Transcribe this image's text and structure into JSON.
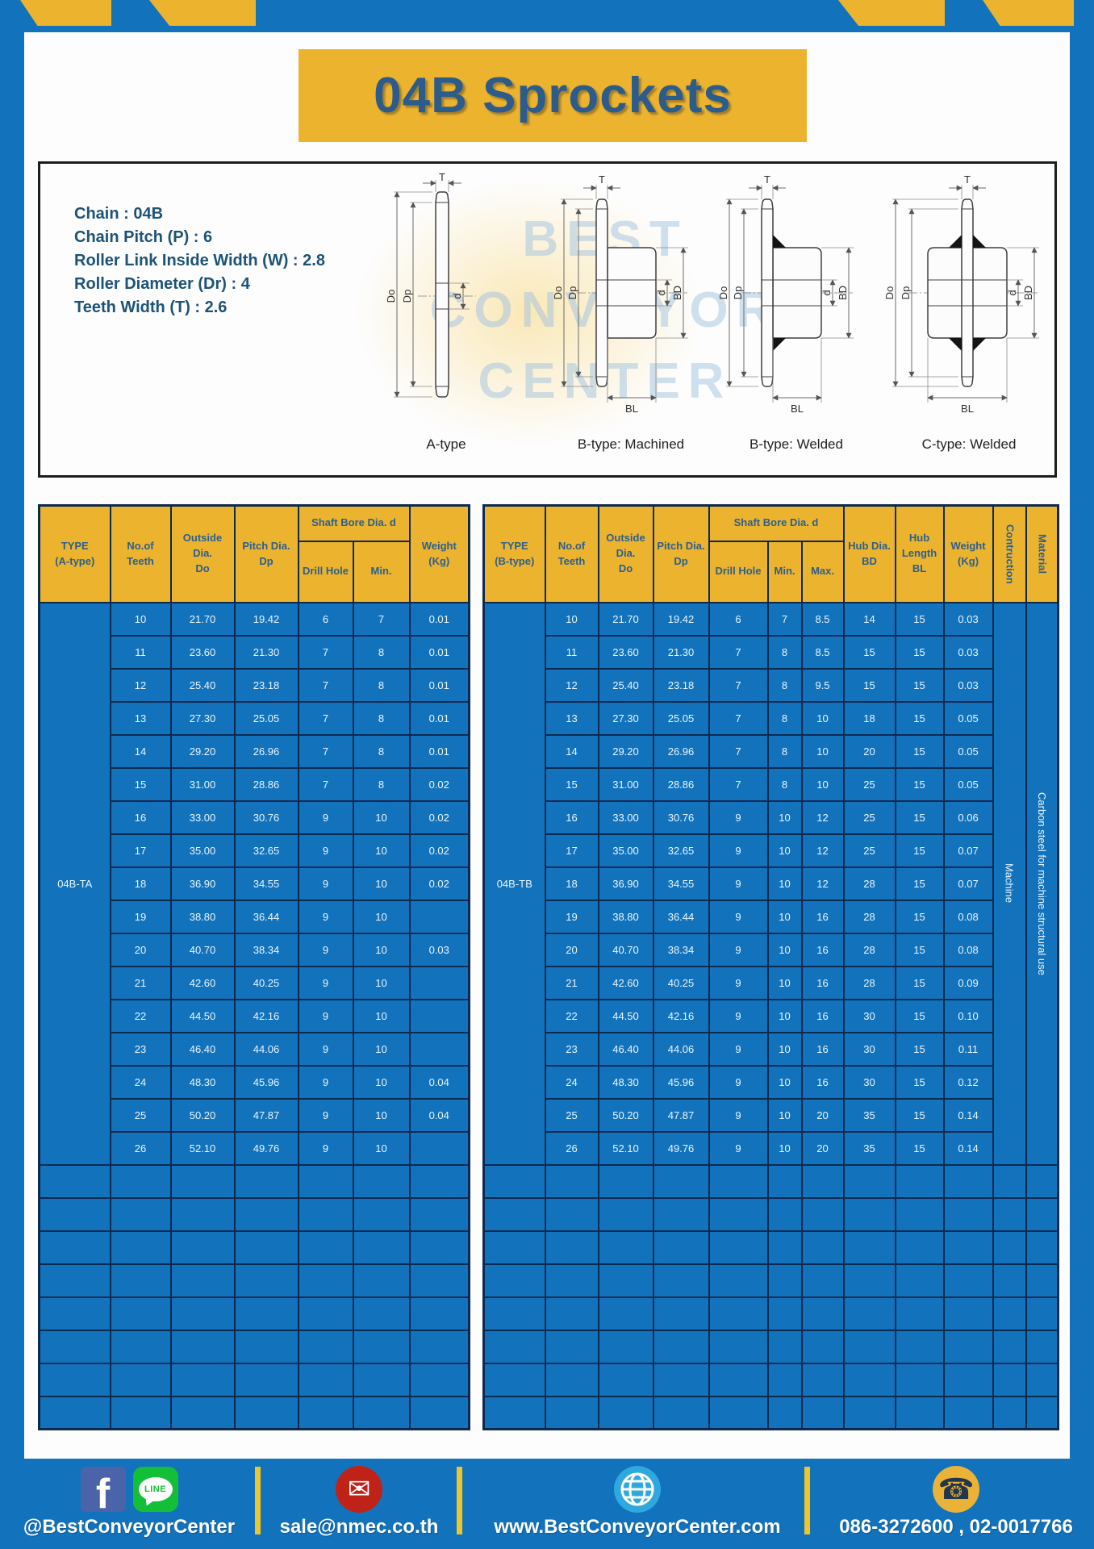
{
  "title": "04B Sprockets",
  "specs": {
    "lines": [
      "Chain : 04B",
      "Chain Pitch (P) : 6",
      "Roller Link Inside Width (W) : 2.8",
      "Roller Diameter (Dr) : 4",
      "Teeth Width (T) : 2.6"
    ]
  },
  "drawings": {
    "labels": [
      "A-type",
      "B-type: Machined",
      "B-type: Welded",
      "C-type: Welded"
    ],
    "dim": {
      "T": "T",
      "Do": "Do",
      "Dp": "Dp",
      "d": "d",
      "BD": "BD",
      "BL": "BL"
    },
    "watermark_lines": [
      "BEST",
      "CONVEYOR",
      "CENTER"
    ]
  },
  "table_a": {
    "headers": {
      "type": "TYPE\n(A-type)",
      "teeth": "No.of\nTeeth",
      "outside": "Outside\nDia.\nDo",
      "pitch": "Pitch Dia.\nDp",
      "shaft_bore": "Shaft Bore Dia. d",
      "drill_hole": "Drill Hole",
      "min": "Min.",
      "weight": "Weight\n(Kg)"
    },
    "type_label": "04B-TA",
    "rows": [
      [
        "10",
        "21.70",
        "19.42",
        "6",
        "7",
        "0.01"
      ],
      [
        "11",
        "23.60",
        "21.30",
        "7",
        "8",
        "0.01"
      ],
      [
        "12",
        "25.40",
        "23.18",
        "7",
        "8",
        "0.01"
      ],
      [
        "13",
        "27.30",
        "25.05",
        "7",
        "8",
        "0.01"
      ],
      [
        "14",
        "29.20",
        "26.96",
        "7",
        "8",
        "0.01"
      ],
      [
        "15",
        "31.00",
        "28.86",
        "7",
        "8",
        "0.02"
      ],
      [
        "16",
        "33.00",
        "30.76",
        "9",
        "10",
        "0.02"
      ],
      [
        "17",
        "35.00",
        "32.65",
        "9",
        "10",
        "0.02"
      ],
      [
        "18",
        "36.90",
        "34.55",
        "9",
        "10",
        "0.02"
      ],
      [
        "19",
        "38.80",
        "36.44",
        "9",
        "10",
        ""
      ],
      [
        "20",
        "40.70",
        "38.34",
        "9",
        "10",
        "0.03"
      ],
      [
        "21",
        "42.60",
        "40.25",
        "9",
        "10",
        ""
      ],
      [
        "22",
        "44.50",
        "42.16",
        "9",
        "10",
        ""
      ],
      [
        "23",
        "46.40",
        "44.06",
        "9",
        "10",
        ""
      ],
      [
        "24",
        "48.30",
        "45.96",
        "9",
        "10",
        "0.04"
      ],
      [
        "25",
        "50.20",
        "47.87",
        "9",
        "10",
        "0.04"
      ],
      [
        "26",
        "52.10",
        "49.76",
        "9",
        "10",
        ""
      ]
    ],
    "empty_rows": 8
  },
  "table_b": {
    "headers": {
      "type": "TYPE\n(B-type)",
      "teeth": "No.of\nTeeth",
      "outside": "Outside\nDia.\nDo",
      "pitch": "Pitch Dia.\nDp",
      "shaft_bore": "Shaft Bore Dia. d",
      "drill_hole": "Drill Hole",
      "min": "Min.",
      "max": "Max.",
      "hub_dia": "Hub Dia.\nBD",
      "hub_length": "Hub\nLength\nBL",
      "weight": "Weight\n(Kg)",
      "construction": "Contruction",
      "material": "Material"
    },
    "type_label": "04B-TB",
    "construction_value": "Machine",
    "material_value": "Carbon steel for machine structural use",
    "rows": [
      [
        "10",
        "21.70",
        "19.42",
        "6",
        "7",
        "8.5",
        "14",
        "15",
        "0.03"
      ],
      [
        "11",
        "23.60",
        "21.30",
        "7",
        "8",
        "8.5",
        "15",
        "15",
        "0.03"
      ],
      [
        "12",
        "25.40",
        "23.18",
        "7",
        "8",
        "9.5",
        "15",
        "15",
        "0.03"
      ],
      [
        "13",
        "27.30",
        "25.05",
        "7",
        "8",
        "10",
        "18",
        "15",
        "0.05"
      ],
      [
        "14",
        "29.20",
        "26.96",
        "7",
        "8",
        "10",
        "20",
        "15",
        "0.05"
      ],
      [
        "15",
        "31.00",
        "28.86",
        "7",
        "8",
        "10",
        "25",
        "15",
        "0.05"
      ],
      [
        "16",
        "33.00",
        "30.76",
        "9",
        "10",
        "12",
        "25",
        "15",
        "0.06"
      ],
      [
        "17",
        "35.00",
        "32.65",
        "9",
        "10",
        "12",
        "25",
        "15",
        "0.07"
      ],
      [
        "18",
        "36.90",
        "34.55",
        "9",
        "10",
        "12",
        "28",
        "15",
        "0.07"
      ],
      [
        "19",
        "38.80",
        "36.44",
        "9",
        "10",
        "16",
        "28",
        "15",
        "0.08"
      ],
      [
        "20",
        "40.70",
        "38.34",
        "9",
        "10",
        "16",
        "28",
        "15",
        "0.08"
      ],
      [
        "21",
        "42.60",
        "40.25",
        "9",
        "10",
        "16",
        "28",
        "15",
        "0.09"
      ],
      [
        "22",
        "44.50",
        "42.16",
        "9",
        "10",
        "16",
        "30",
        "15",
        "0.10"
      ],
      [
        "23",
        "46.40",
        "44.06",
        "9",
        "10",
        "16",
        "30",
        "15",
        "0.11"
      ],
      [
        "24",
        "48.30",
        "45.96",
        "9",
        "10",
        "16",
        "30",
        "15",
        "0.12"
      ],
      [
        "25",
        "50.20",
        "47.87",
        "9",
        "10",
        "20",
        "35",
        "15",
        "0.14"
      ],
      [
        "26",
        "52.10",
        "49.76",
        "9",
        "10",
        "20",
        "35",
        "15",
        "0.14"
      ]
    ],
    "empty_rows": 8
  },
  "footer": {
    "facebook_glyph": "f",
    "line_label": "LINE",
    "mail_glyph": "✉",
    "phone_glyph": "☎",
    "items": [
      {
        "name": "social",
        "text": "@BestConveyorCenter"
      },
      {
        "name": "email",
        "text": "sale@nmec.co.th"
      },
      {
        "name": "website",
        "text": "www.BestConveyorCenter.com"
      },
      {
        "name": "phone",
        "text": "086-3272600 , 02-0017766"
      }
    ]
  },
  "colors": {
    "brand_blue": "#1272bb",
    "brand_yellow": "#ecb32f",
    "cell_blue": "#1273bc",
    "grid_navy": "#0c2a50",
    "header_text": "#2b5f8e",
    "title_text": "#2c5c8c",
    "spec_text": "#1c5377",
    "facebook_blue": "#4a63a9",
    "line_green": "#12bf36",
    "mail_red": "#bf2317",
    "globe_blue": "#2fa8e0"
  }
}
